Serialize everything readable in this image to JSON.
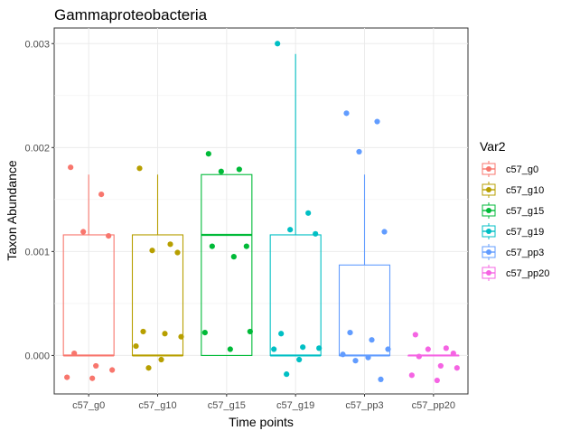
{
  "chart_data": {
    "type": "boxplot",
    "title": "Gammaproteobacteria",
    "xlabel": "Time points",
    "ylabel": "Taxon Abundance",
    "ylim": [
      -0.00037,
      0.00315
    ],
    "yticks": [
      0.0,
      0.001,
      0.002,
      0.003
    ],
    "ytick_labels": [
      "0.000",
      "0.001",
      "0.002",
      "0.003"
    ],
    "grid": true,
    "legend": {
      "title": "Var2",
      "placement": "right"
    },
    "categories": [
      "c57_g0",
      "c57_g10",
      "c57_g15",
      "c57_g19",
      "c57_pp3",
      "c57_pp20"
    ],
    "series": [
      {
        "name": "c57_g0",
        "color": "#F8766D",
        "box": {
          "lower_whisker": 0.0,
          "q1": 0.0,
          "median": 0.0,
          "q3": 0.00116,
          "upper_whisker": 0.00174
        },
        "points": [
          0.00181,
          0.00155,
          0.00119,
          0.00115,
          2e-05,
          -0.0001,
          -0.00014,
          -0.00021,
          -0.00022
        ]
      },
      {
        "name": "c57_g10",
        "color": "#B79F00",
        "box": {
          "lower_whisker": 0.0,
          "q1": 0.0,
          "median": 0.0,
          "q3": 0.00116,
          "upper_whisker": 0.00174
        },
        "points": [
          0.0018,
          0.00107,
          0.00101,
          0.00099,
          0.00023,
          0.00021,
          0.00018,
          9e-05,
          -4e-05,
          -0.00012
        ]
      },
      {
        "name": "c57_g15",
        "color": "#00BA38",
        "box": {
          "lower_whisker": 0.0,
          "q1": 0.0,
          "median": 0.00116,
          "q3": 0.00174,
          "upper_whisker": 0.00174
        },
        "points": [
          0.00194,
          0.00179,
          0.00177,
          0.00105,
          0.00105,
          0.00095,
          0.00023,
          0.00022,
          6e-05
        ]
      },
      {
        "name": "c57_g19",
        "color": "#00BFC4",
        "box": {
          "lower_whisker": 0.0,
          "q1": 0.0,
          "median": 0.0,
          "q3": 0.00116,
          "upper_whisker": 0.0029
        },
        "points": [
          0.003,
          0.00137,
          0.00121,
          0.00117,
          0.00021,
          8e-05,
          7e-05,
          6e-05,
          -4e-05,
          -0.00018
        ]
      },
      {
        "name": "c57_pp3",
        "color": "#619CFF",
        "box": {
          "lower_whisker": 0.0,
          "q1": 0.0,
          "median": 0.0,
          "q3": 0.00087,
          "upper_whisker": 0.00174
        },
        "points": [
          0.00233,
          0.00225,
          0.00196,
          0.00119,
          0.00022,
          0.00015,
          6e-05,
          1e-05,
          -2e-05,
          -5e-05,
          -0.00023
        ]
      },
      {
        "name": "c57_pp20",
        "color": "#F564E3",
        "box": {
          "lower_whisker": 0.0,
          "q1": 0.0,
          "median": 0.0,
          "q3": 0.0,
          "upper_whisker": 0.0
        },
        "points": [
          0.0002,
          7e-05,
          6e-05,
          2e-05,
          -1e-05,
          -0.0001,
          -0.00012,
          -0.00019,
          -0.00024
        ]
      }
    ]
  }
}
